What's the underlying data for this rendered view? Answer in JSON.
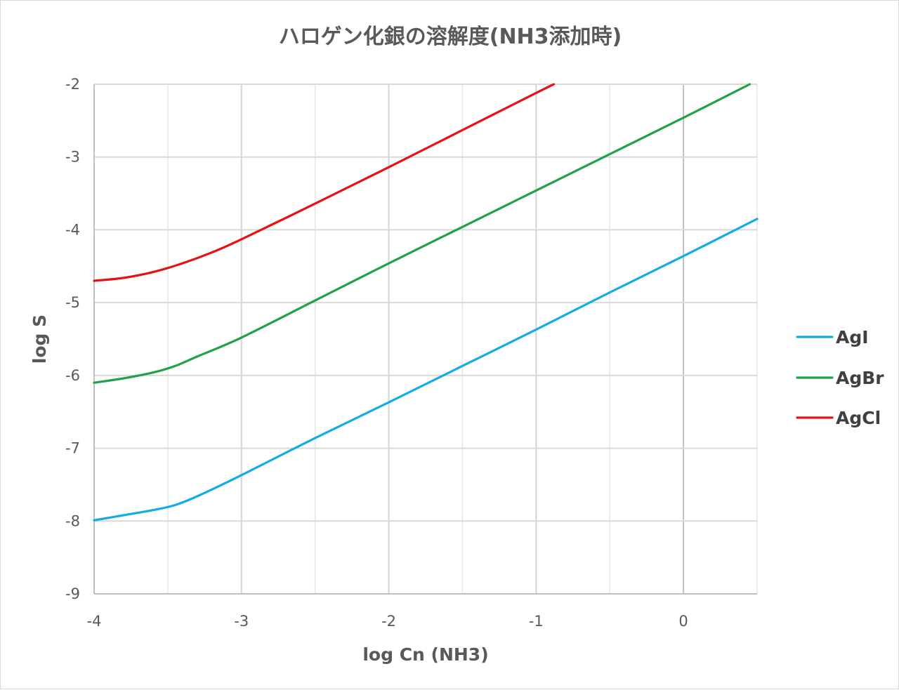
{
  "chart_data": {
    "type": "line",
    "title": "ハロゲン化銀の溶解度(NH3添加時)",
    "xlabel": "log Cn (NH3)",
    "ylabel": "log S",
    "xlim": [
      -4,
      0.5
    ],
    "ylim": [
      -9,
      -2
    ],
    "x_major_ticks": [
      -4,
      -3,
      -2,
      -1,
      0
    ],
    "x_minor_gridlines": [
      -3.5,
      -2.5,
      -1.5,
      -0.5,
      0.5
    ],
    "y_ticks": [
      -9,
      -8,
      -7,
      -6,
      -5,
      -4,
      -3,
      -2
    ],
    "grid": true,
    "legend_position": "right",
    "series": [
      {
        "name": "AgI",
        "color": "#14ace5",
        "points": [
          [
            -4.0,
            -7.99
          ],
          [
            -3.8,
            -7.92
          ],
          [
            -3.6,
            -7.85
          ],
          [
            -3.45,
            -7.78
          ],
          [
            -3.3,
            -7.66
          ],
          [
            -3.0,
            -7.37
          ],
          [
            -2.5,
            -6.86
          ],
          [
            -2.0,
            -6.37
          ],
          [
            -1.5,
            -5.87
          ],
          [
            -1.0,
            -5.37
          ],
          [
            -0.5,
            -4.86
          ],
          [
            0.0,
            -4.36
          ],
          [
            0.5,
            -3.85
          ]
        ]
      },
      {
        "name": "AgBr",
        "color": "#21a24a",
        "points": [
          [
            -4.0,
            -6.1
          ],
          [
            -3.8,
            -6.04
          ],
          [
            -3.6,
            -5.96
          ],
          [
            -3.45,
            -5.87
          ],
          [
            -3.3,
            -5.74
          ],
          [
            -3.0,
            -5.48
          ],
          [
            -2.5,
            -4.97
          ],
          [
            -2.0,
            -4.46
          ],
          [
            -1.5,
            -3.96
          ],
          [
            -1.0,
            -3.46
          ],
          [
            -0.5,
            -2.96
          ],
          [
            0.0,
            -2.46
          ],
          [
            0.45,
            -2.0
          ]
        ]
      },
      {
        "name": "AgCl",
        "color": "#e81010",
        "points": [
          [
            -4.0,
            -4.7
          ],
          [
            -3.8,
            -4.66
          ],
          [
            -3.6,
            -4.58
          ],
          [
            -3.4,
            -4.46
          ],
          [
            -3.2,
            -4.31
          ],
          [
            -3.0,
            -4.13
          ],
          [
            -2.5,
            -3.64
          ],
          [
            -2.0,
            -3.14
          ],
          [
            -1.5,
            -2.63
          ],
          [
            -1.0,
            -2.12
          ],
          [
            -0.88,
            -2.0
          ]
        ]
      }
    ]
  }
}
